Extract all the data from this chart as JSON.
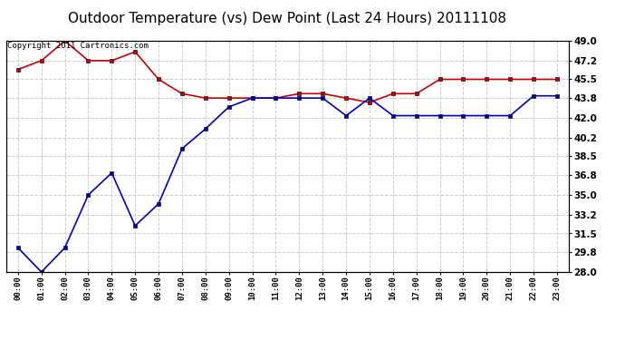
{
  "title": "Outdoor Temperature (vs) Dew Point (Last 24 Hours) 20111108",
  "copyright_text": "Copyright 2011 Cartronics.com",
  "x_labels": [
    "00:00",
    "01:00",
    "02:00",
    "03:00",
    "04:00",
    "05:00",
    "06:00",
    "07:00",
    "08:00",
    "09:00",
    "10:00",
    "11:00",
    "12:00",
    "13:00",
    "14:00",
    "15:00",
    "16:00",
    "17:00",
    "18:00",
    "19:00",
    "20:00",
    "21:00",
    "22:00",
    "23:00"
  ],
  "temp_data": [
    46.4,
    47.2,
    49.0,
    47.2,
    47.2,
    48.0,
    45.5,
    44.2,
    43.8,
    43.8,
    43.8,
    43.8,
    44.2,
    44.2,
    43.8,
    43.4,
    44.2,
    44.2,
    45.5,
    45.5,
    45.5,
    45.5,
    45.5,
    45.5
  ],
  "dew_data": [
    30.2,
    28.0,
    30.2,
    35.0,
    37.0,
    32.2,
    34.2,
    39.2,
    41.0,
    43.0,
    43.8,
    43.8,
    43.8,
    43.8,
    42.2,
    43.8,
    42.2,
    42.2,
    42.2,
    42.2,
    42.2,
    42.2,
    44.0,
    44.0
  ],
  "temp_color": "#cc0000",
  "dew_color": "#0000cc",
  "bg_color": "#ffffff",
  "plot_bg_color": "#ffffff",
  "grid_color": "#cccccc",
  "ylim": [
    28.0,
    49.0
  ],
  "yticks": [
    28.0,
    29.8,
    31.5,
    33.2,
    35.0,
    36.8,
    38.5,
    40.2,
    42.0,
    43.8,
    45.5,
    47.2,
    49.0
  ],
  "title_fontsize": 11,
  "copyright_fontsize": 6.5,
  "marker": "s",
  "markersize": 3,
  "linewidth": 1.2
}
